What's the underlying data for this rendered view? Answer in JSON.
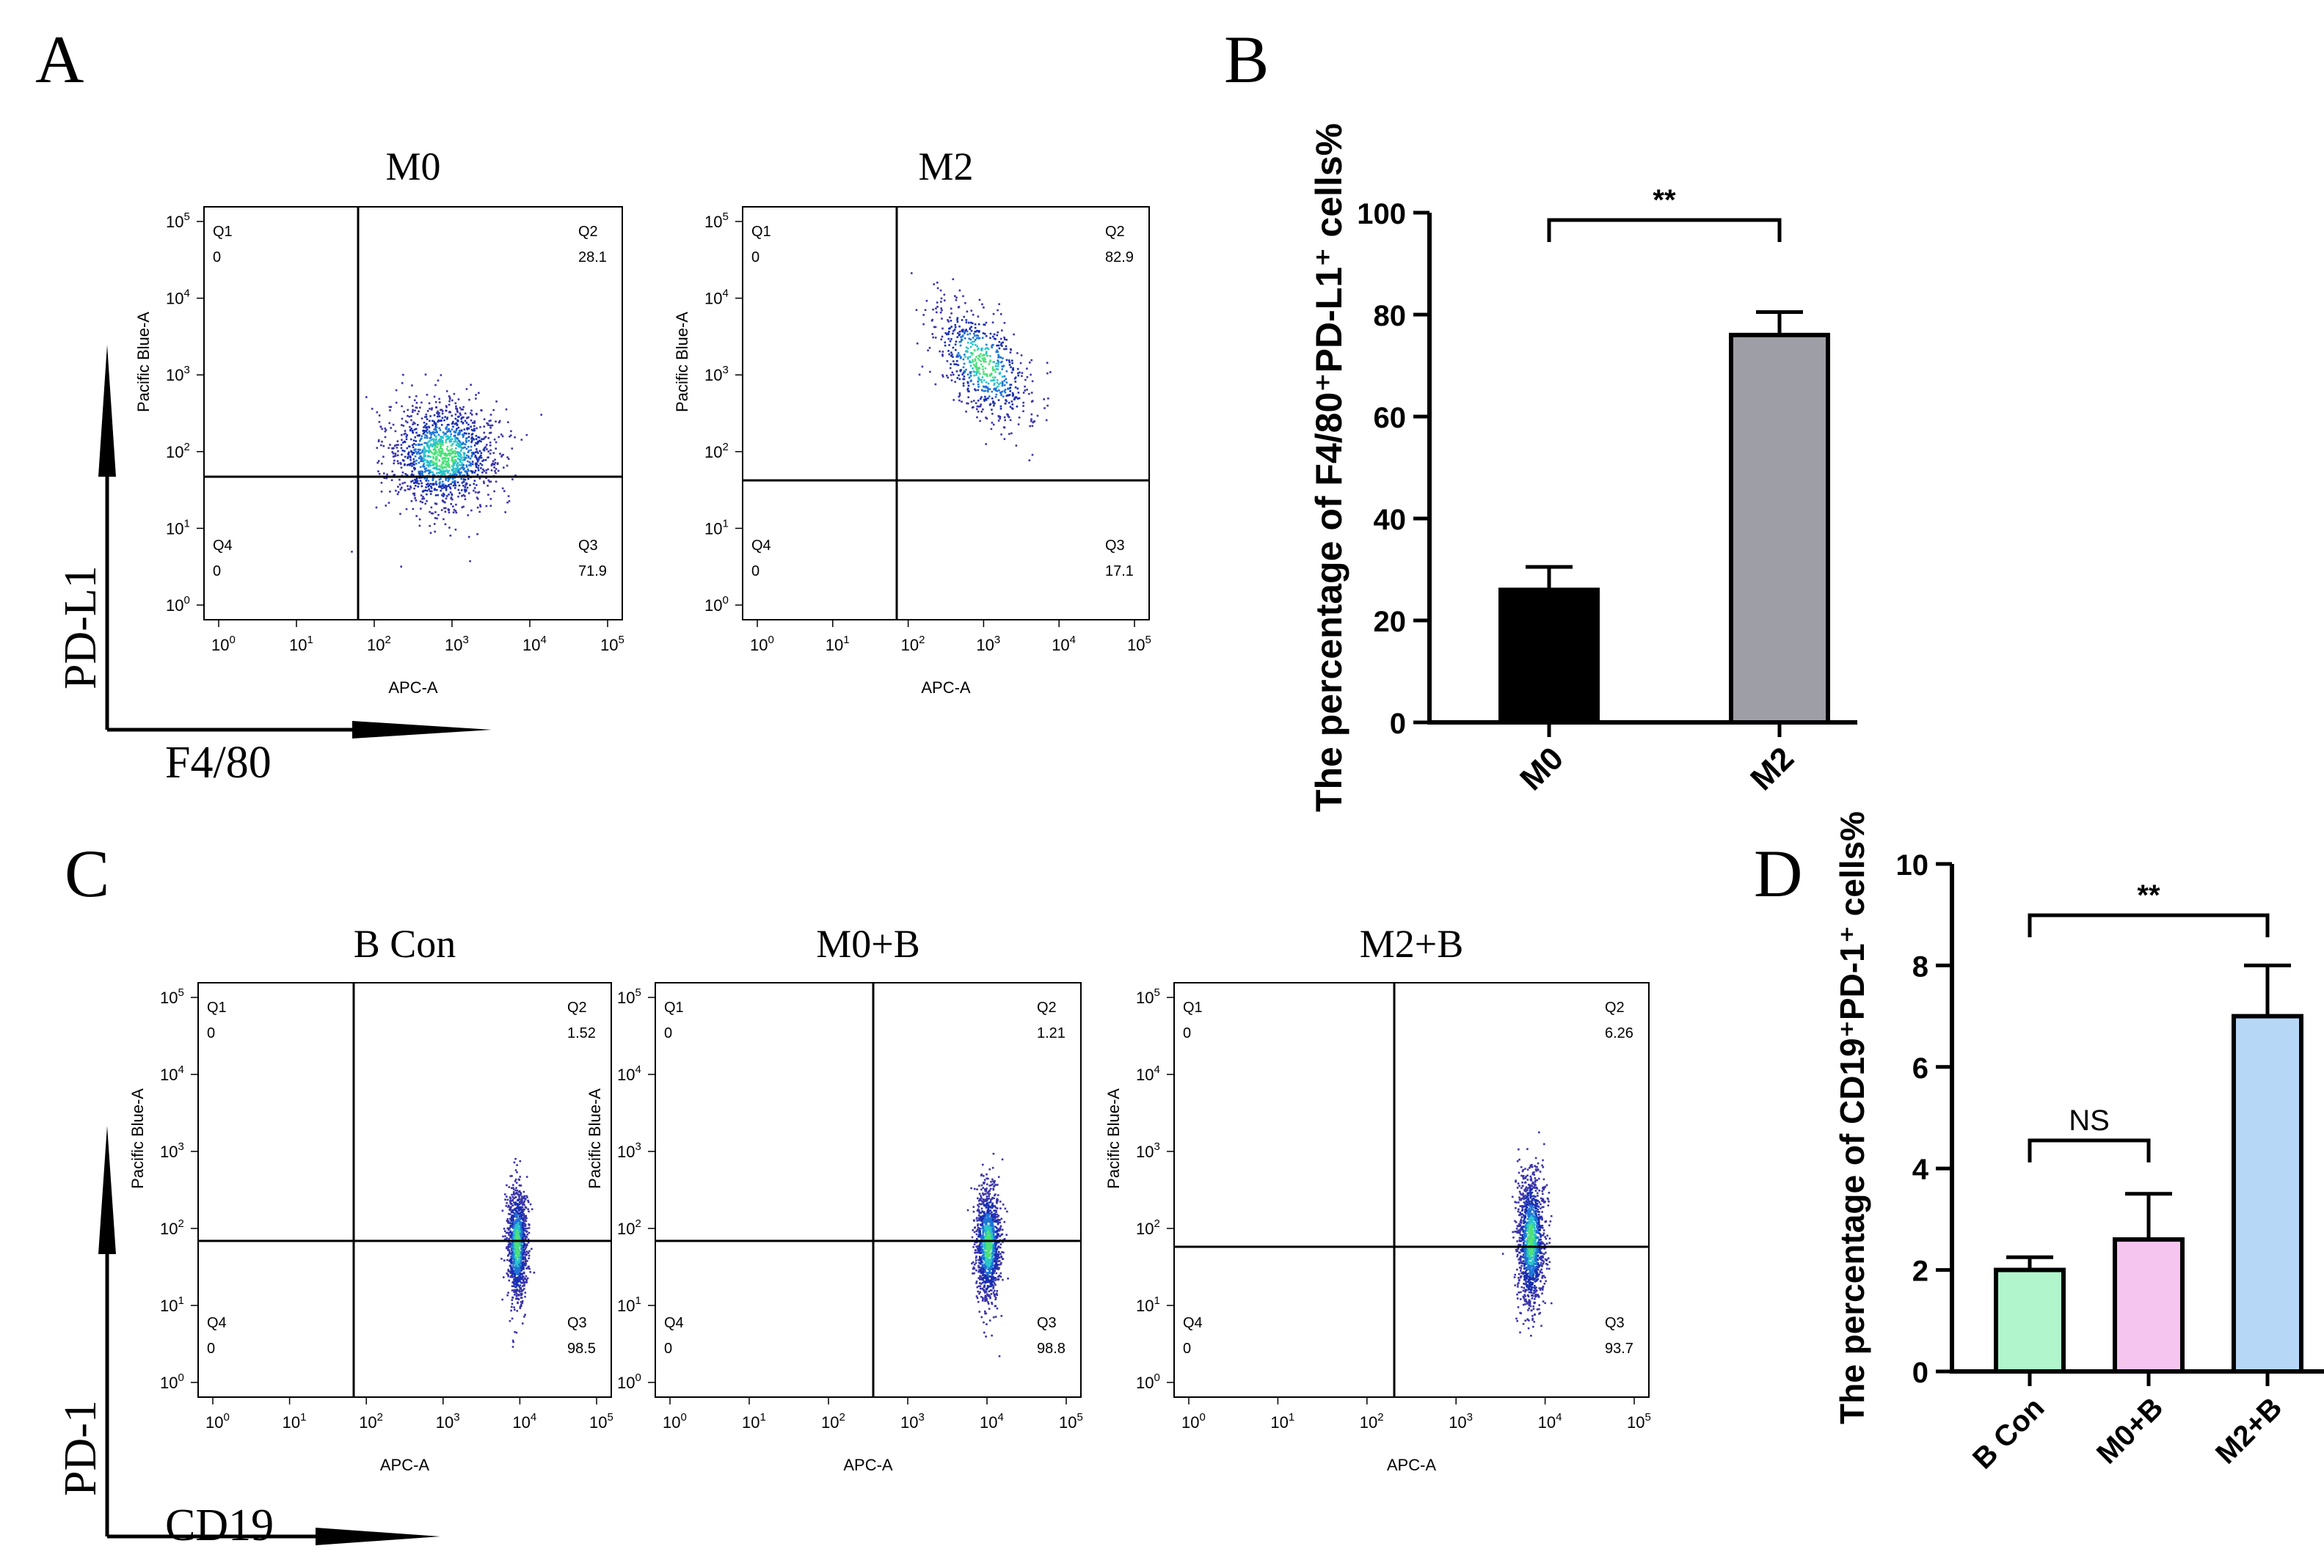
{
  "panel_letters": {
    "A": "A",
    "B": "B",
    "C": "C",
    "D": "D"
  },
  "flow_common": {
    "x_axis_label": "APC-A",
    "y_axis_label": "Pacific Blue-A",
    "tick_base": "10",
    "tick_exponents": [
      "0",
      "1",
      "2",
      "3",
      "4",
      "5"
    ],
    "quadrants": [
      "Q1",
      "Q2",
      "Q3",
      "Q4"
    ],
    "q1_value": "0",
    "q4_value": "0"
  },
  "flow_plots": [
    {
      "id": "M0",
      "title": "M0",
      "q2": "28.1",
      "q3": "71.9"
    },
    {
      "id": "M2",
      "title": "M2",
      "q2": "82.9",
      "q3": "17.1"
    },
    {
      "id": "BCon",
      "title": "B Con",
      "q2": "1.52",
      "q3": "98.5"
    },
    {
      "id": "M0B",
      "title": "M0+B",
      "q2": "1.21",
      "q3": "98.8"
    },
    {
      "id": "M2B",
      "title": "M2+B",
      "q2": "6.26",
      "q3": "93.7"
    }
  ],
  "arrows_A": {
    "y_label": "PD-L1",
    "x_label": "F4/80"
  },
  "arrows_C": {
    "y_label": "PD-1",
    "x_label": "CD19"
  },
  "chart_data": [
    {
      "type": "bar",
      "panel": "B",
      "categories": [
        "M0",
        "M2"
      ],
      "values": [
        26,
        76
      ],
      "errors": [
        4.5,
        4.5
      ],
      "colors": [
        "#000000",
        "#9e9ea6"
      ],
      "ylim": [
        0,
        100
      ],
      "yticks": [
        "0",
        "20",
        "40",
        "60",
        "80",
        "100"
      ],
      "ylabel": "The percentage of F4/80⁺PD-L1⁺ cells%",
      "annotations": [
        {
          "pair": [
            0,
            1
          ],
          "text": "**"
        }
      ]
    },
    {
      "type": "bar",
      "panel": "D",
      "categories": [
        "B Con",
        "M0+B",
        "M2+B"
      ],
      "values": [
        2.0,
        2.6,
        7.0
      ],
      "errors": [
        0.25,
        0.9,
        1.0
      ],
      "colors": [
        "#b1f5cd",
        "#f5c5ef",
        "#b6d8f6"
      ],
      "ylim": [
        0,
        10
      ],
      "yticks": [
        "0",
        "2",
        "4",
        "6",
        "8",
        "10"
      ],
      "ylabel": "The percentage of CD19⁺PD-1⁺ cells%",
      "annotations": [
        {
          "pair": [
            0,
            1
          ],
          "text": "NS"
        },
        {
          "pair": [
            0,
            2
          ],
          "text": "**"
        }
      ]
    }
  ]
}
